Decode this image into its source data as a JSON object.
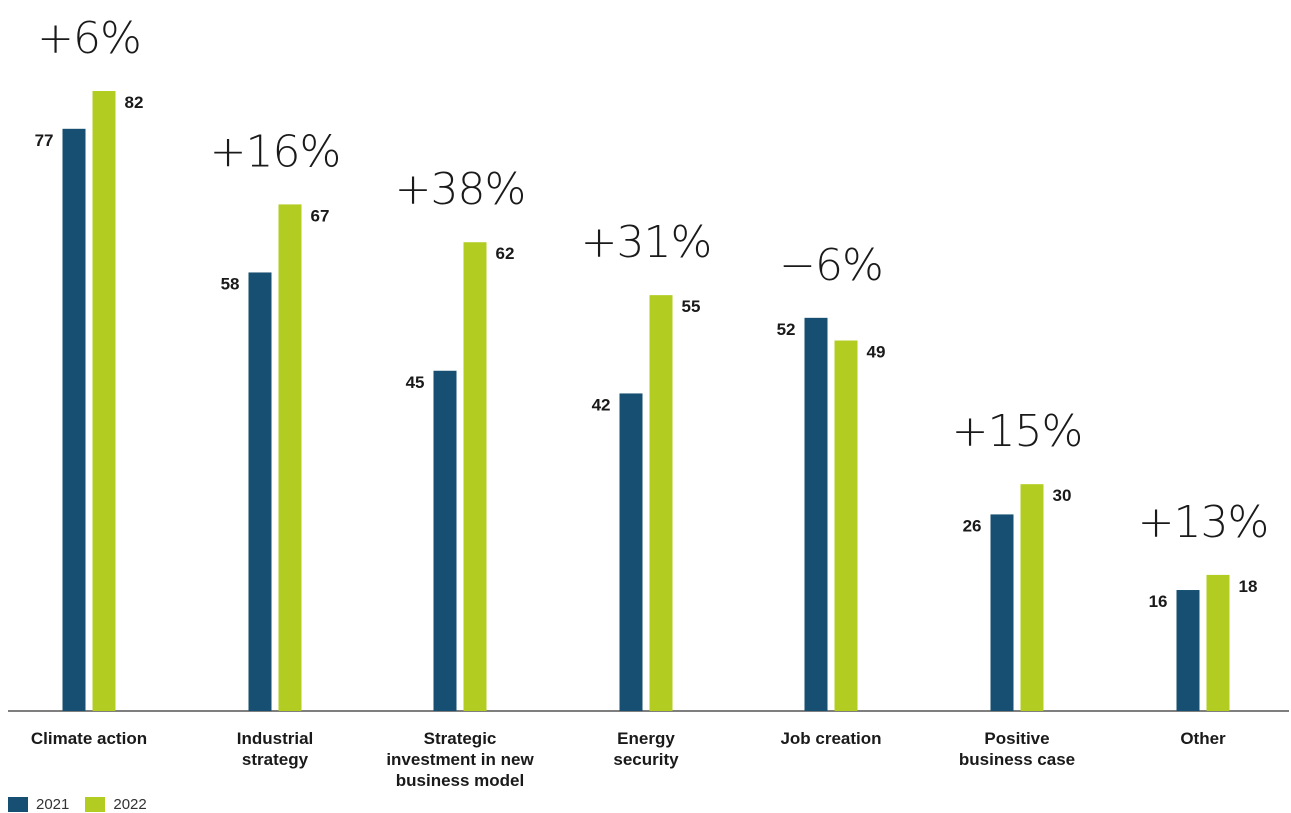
{
  "chart_data": {
    "type": "bar",
    "title": "",
    "xlabel": "",
    "ylabel": "",
    "ylim": [
      0,
      82
    ],
    "grid": false,
    "legend_position": "bottom-left",
    "categories": [
      [
        "Climate action"
      ],
      [
        "Industrial",
        "strategy"
      ],
      [
        "Strategic",
        "investment in new",
        "business model"
      ],
      [
        "Energy",
        "security"
      ],
      [
        "Job creation"
      ],
      [
        "Positive",
        "business case"
      ],
      [
        "Other"
      ]
    ],
    "series": [
      {
        "name": "2021",
        "color": "#164f71",
        "values": [
          77,
          58,
          45,
          42,
          52,
          26,
          16
        ]
      },
      {
        "name": "2022",
        "color": "#b2cc22",
        "values": [
          82,
          67,
          62,
          55,
          49,
          30,
          18
        ]
      }
    ],
    "change_labels": [
      "+6%",
      "+16%",
      "+38%",
      "+31%",
      "−6%",
      "+15%",
      "+13%"
    ]
  }
}
